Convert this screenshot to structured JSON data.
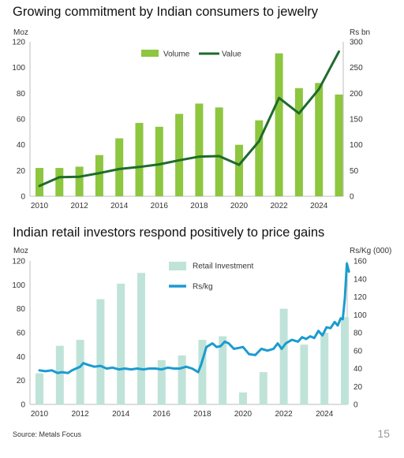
{
  "page": {
    "source": "Source: Metals Focus",
    "page_number": "15"
  },
  "chart_data": [
    {
      "type": "bar",
      "title": "Growing commitment by Indian consumers to jewelry",
      "left_unit": "Moz",
      "right_unit": "Rs bn",
      "x": [
        2010,
        2011,
        2012,
        2013,
        2014,
        2015,
        2016,
        2017,
        2018,
        2019,
        2020,
        2021,
        2022,
        2023,
        2024,
        2025
      ],
      "x_ticks": [
        "2010",
        "2012",
        "2014",
        "2016",
        "2018",
        "2020",
        "2022",
        "2024"
      ],
      "left_ylim": [
        0,
        120
      ],
      "left_ticks": [
        "0",
        "20",
        "40",
        "60",
        "80",
        "100",
        "120"
      ],
      "right_ylim": [
        0,
        300
      ],
      "right_ticks": [
        "0",
        "50",
        "100",
        "150",
        "200",
        "250",
        "300"
      ],
      "legend_position": "top-center",
      "series": [
        {
          "name": "Volume",
          "kind": "bar",
          "axis": "left",
          "color": "#8DC63F",
          "values": [
            22,
            22,
            23,
            32,
            45,
            57,
            54,
            64,
            72,
            69,
            40,
            59,
            111,
            84,
            88,
            79
          ]
        },
        {
          "name": "Value",
          "kind": "line",
          "axis": "right",
          "color": "#1E6B2C",
          "values": [
            20,
            37,
            38,
            45,
            53,
            57,
            62,
            70,
            77,
            78,
            61,
            107,
            191,
            161,
            208,
            281
          ]
        }
      ]
    },
    {
      "type": "bar",
      "title": "Indian retail investors respond positively to price gains",
      "left_unit": "Moz",
      "right_unit": "Rs/Kg (000)",
      "x_ticks": [
        "2010",
        "2012",
        "2014",
        "2016",
        "2018",
        "2020",
        "2022",
        "2024"
      ],
      "left_ylim": [
        0,
        120
      ],
      "left_ticks": [
        "0",
        "20",
        "40",
        "60",
        "80",
        "100",
        "120"
      ],
      "right_ylim": [
        0,
        160
      ],
      "right_ticks": [
        "0",
        "20",
        "40",
        "60",
        "80",
        "100",
        "120",
        "140",
        "160"
      ],
      "legend_position": "top-center",
      "series": [
        {
          "name": "Retail Investment",
          "kind": "bar",
          "axis": "left",
          "color": "#BFE3D8",
          "x": [
            2010,
            2011,
            2012,
            2013,
            2014,
            2015,
            2016,
            2017,
            2018,
            2019,
            2020,
            2021,
            2022,
            2023,
            2024,
            2025
          ],
          "values": [
            26,
            49,
            54,
            88,
            101,
            110,
            37,
            41,
            54,
            57,
            10,
            27,
            80,
            50,
            60,
            73
          ]
        },
        {
          "name": "Rs/kg",
          "kind": "line",
          "axis": "right",
          "color": "#1B9BD1",
          "x": [
            2010.0,
            2010.3,
            2010.6,
            2010.9,
            2011.1,
            2011.4,
            2011.6,
            2011.8,
            2012.0,
            2012.15,
            2012.4,
            2012.7,
            2013.0,
            2013.3,
            2013.6,
            2013.9,
            2014.2,
            2014.5,
            2014.8,
            2015.1,
            2015.4,
            2015.7,
            2016.0,
            2016.3,
            2016.6,
            2016.9,
            2017.2,
            2017.5,
            2017.8,
            2017.95,
            2018.2,
            2018.5,
            2018.7,
            2018.9,
            2019.1,
            2019.3,
            2019.55,
            2019.8,
            2020.0,
            2020.3,
            2020.6,
            2020.9,
            2021.2,
            2021.5,
            2021.7,
            2021.9,
            2022.1,
            2022.4,
            2022.7,
            2022.9,
            2023.1,
            2023.3,
            2023.5,
            2023.7,
            2023.9,
            2024.1,
            2024.3,
            2024.5,
            2024.65,
            2024.8,
            2024.9,
            2025.0,
            2025.1,
            2025.2
          ],
          "values": [
            38,
            37,
            38,
            35,
            36,
            35,
            38,
            40,
            42,
            46,
            44,
            42,
            43,
            40,
            41,
            39,
            40,
            39,
            40,
            39,
            40,
            40,
            39,
            41,
            40,
            40,
            42,
            40,
            36,
            45,
            64,
            68,
            64,
            65,
            70,
            68,
            62,
            63,
            64,
            56,
            55,
            62,
            60,
            62,
            68,
            62,
            68,
            72,
            70,
            75,
            73,
            76,
            74,
            82,
            77,
            86,
            85,
            92,
            88,
            96,
            95,
            118,
            157,
            148
          ]
        }
      ]
    }
  ]
}
